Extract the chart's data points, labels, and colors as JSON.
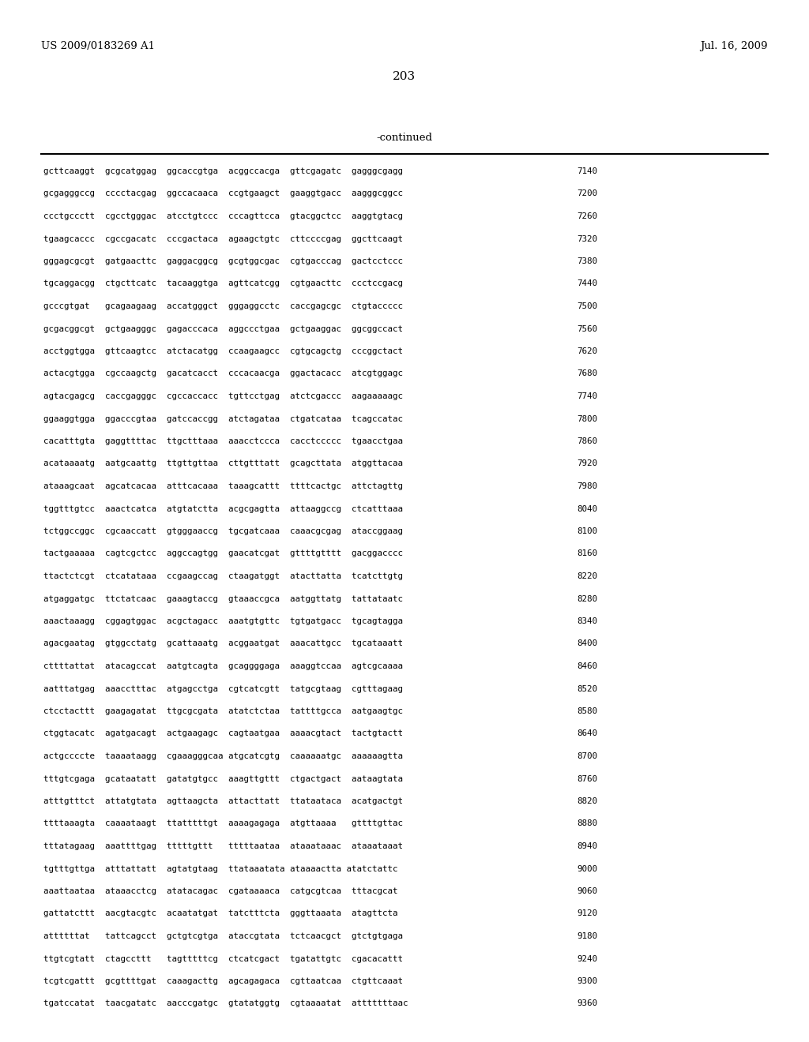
{
  "header_left": "US 2009/0183269 A1",
  "header_right": "Jul. 16, 2009",
  "page_number": "203",
  "continued_text": "-continued",
  "background_color": "#ffffff",
  "text_color": "#000000",
  "sequence_lines": [
    [
      "gcttcaaggt  gcgcatggag  ggcaccgtga  acggccacga  gttcgagatc  gagggcgagg",
      "7140"
    ],
    [
      "gcgagggccg  cccctacgag  ggccacaaca  ccgtgaagct  gaaggtgacc  aagggcggcc",
      "7200"
    ],
    [
      "ccctgccctt  cgcctgggac  atcctgtccc  cccagttcca  gtacggctcc  aaggtgtacg",
      "7260"
    ],
    [
      "tgaagcaccc  cgccgacatc  cccgactaca  agaagctgtc  cttccccgag  ggcttcaagt",
      "7320"
    ],
    [
      "gggagcgcgt  gatgaacttc  gaggacggcg  gcgtggcgac  cgtgacccag  gactcctccc",
      "7380"
    ],
    [
      "tgcaggacgg  ctgcttcatc  tacaaggtga  agttcatcgg  cgtgaacttc  ccctccgacg",
      "7440"
    ],
    [
      "gcccgtgat   gcagaagaag  accatgggct  gggaggcctc  caccgagcgc  ctgtaccccc",
      "7500"
    ],
    [
      "gcgacggcgt  gctgaagggc  gagacccaca  aggccctgaa  gctgaaggac  ggcggccact",
      "7560"
    ],
    [
      "acctggtgga  gttcaagtcc  atctacatgg  ccaagaagcc  cgtgcagctg  cccggctact",
      "7620"
    ],
    [
      "actacgtgga  cgccaagctg  gacatcacct  cccacaacga  ggactacacc  atcgtggagc",
      "7680"
    ],
    [
      "agtacgagcg  caccgagggc  cgccaccacc  tgttcctgag  atctcgaccc  aagaaaaagc",
      "7740"
    ],
    [
      "ggaaggtgga  ggacccgtaa  gatccaccgg  atctagataa  ctgatcataa  tcagccatac",
      "7800"
    ],
    [
      "cacatttgta  gaggttttac  ttgctttaaa  aaacctccca  cacctccccc  tgaacctgaa",
      "7860"
    ],
    [
      "acataaaatg  aatgcaattg  ttgttgttaa  cttgtttatt  gcagcttata  atggttacaa",
      "7920"
    ],
    [
      "ataaagcaat  agcatcacaa  atttcacaaa  taaagcattt  ttttcactgc  attctagttg",
      "7980"
    ],
    [
      "tggtttgtcc  aaactcatca  atgtatctta  acgcgagtta  attaaggccg  ctcatttaaa",
      "8040"
    ],
    [
      "tctggccggc  cgcaaccatt  gtgggaaccg  tgcgatcaaa  caaacgcgag  ataccggaag",
      "8100"
    ],
    [
      "tactgaaaaa  cagtcgctcc  aggccagtgg  gaacatcgat  gttttgtttt  gacggacccc",
      "8160"
    ],
    [
      "ttactctcgt  ctcatataaa  ccgaagccag  ctaagatggt  atacttatta  tcatcttgtg",
      "8220"
    ],
    [
      "atgaggatgc  ttctatcaac  gaaagtaccg  gtaaaccgca  aatggttatg  tattataatc",
      "8280"
    ],
    [
      "aaactaaagg  cggagtggac  acgctagacc  aaatgtgttc  tgtgatgacc  tgcagtagga",
      "8340"
    ],
    [
      "agacgaatag  gtggcctatg  gcattaaatg  acggaatgat  aaacattgcc  tgcataaatt",
      "8400"
    ],
    [
      "cttttattat  atacagccat  aatgtcagta  gcaggggaga  aaaggtccaa  agtcgcaaaa",
      "8460"
    ],
    [
      "aatttatgag  aaacctttac  atgagcctga  cgtcatcgtt  tatgcgtaag  cgtttagaag",
      "8520"
    ],
    [
      "ctcctacttt  gaagagatat  ttgcgcgata  atatctctaa  tattttgcca  aatgaagtgc",
      "8580"
    ],
    [
      "ctggtacatc  agatgacagt  actgaagagc  cagtaatgaa  aaaacgtact  tactgtactt",
      "8640"
    ],
    [
      "actgccccte  taaaataagg  cgaaagggcaa atgcatcgtg  caaaaaatgc  aaaaaagtta",
      "8700"
    ],
    [
      "tttgtcgaga  gcataatatt  gatatgtgcc  aaagttgttt  ctgactgact  aataagtata",
      "8760"
    ],
    [
      "atttgtttct  attatgtata  agttaagcta  attacttatt  ttataataca  acatgactgt",
      "8820"
    ],
    [
      "ttttaaagta  caaaataagt  ttatttttgt  aaaagagaga  atgttaaaa   gttttgttac",
      "8880"
    ],
    [
      "tttatagaag  aaattttgag  tttttgttt   tttttaataa  ataaataaac  ataaataaat",
      "8940"
    ],
    [
      "tgtttgttga  atttattatt  agtatgtaag  ttataaatata ataaaactta atatctattc",
      "9000"
    ],
    [
      "aaattaataa  ataaacctcg  atatacagac  cgataaaaca  catgcgtcaa  tttacgcat",
      "9060"
    ],
    [
      "gattatcttt  aacgtacgtc  acaatatgat  tatctttcta  gggttaaata  atagttcta",
      "9120"
    ],
    [
      "attttttat   tattcagcct  gctgtcgtga  ataccgtata  tctcaacgct  gtctgtgaga",
      "9180"
    ],
    [
      "ttgtcgtatt  ctagccttt   tagtttttcg  ctcatcgact  tgatattgtc  cgacacattt",
      "9240"
    ],
    [
      "tcgtcgattt  gcgttttgat  caaagacttg  agcagagaca  cgttaatcaa  ctgttcaaat",
      "9300"
    ],
    [
      "tgatccatat  taacgatatc  aacccgatgc  gtatatggtg  cgtaaaatat  atttttttaac",
      "9360"
    ]
  ]
}
